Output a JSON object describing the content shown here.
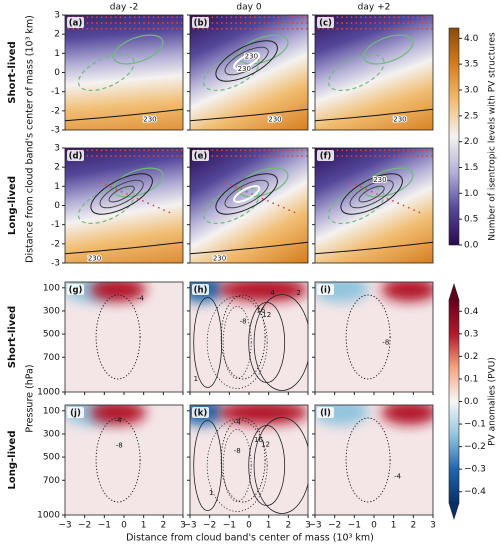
{
  "chart_data": [
    {
      "type": "contour",
      "column_titles": [
        "day -2",
        "day 0",
        "day +2"
      ],
      "row_labels": [
        "Short-lived",
        "Long-lived"
      ],
      "panel_labels": [
        [
          "(a)",
          "(b)",
          "(c)"
        ],
        [
          "(d)",
          "(e)",
          "(f)"
        ]
      ],
      "ylabel": "Distance from cloud band's center of mass (10³ km)",
      "xlim": [
        -3,
        3
      ],
      "ylim": [
        -3,
        3
      ],
      "yticks": [
        -3,
        -2,
        -1,
        0,
        1,
        2,
        3
      ],
      "contour_labels": [
        [
          [
            230
          ],
          [
            230,
            230,
            230
          ],
          [
            230
          ]
        ],
        [
          [
            230
          ],
          [
            230
          ],
          [
            230
          ]
        ]
      ],
      "colorbar": {
        "label": "Number of isentropic levels with PV structures",
        "lim": [
          0,
          4.2
        ],
        "ticks": [
          {
            "value": 0,
            "label": "0.0"
          },
          0.5,
          {
            "value": 1,
            "label": "1.0"
          },
          1.5,
          {
            "value": 2,
            "label": "2.0"
          },
          2.5,
          {
            "value": 3,
            "label": "3.0"
          },
          3.5,
          {
            "value": 4,
            "label": "4.0"
          }
        ],
        "colors": [
          "#2a0b4f",
          "#54479a",
          "#b3afd6",
          "#f4f2f1",
          "#f1bd72",
          "#d67d1f",
          "#8a490b"
        ]
      }
    },
    {
      "type": "contour",
      "row_labels": [
        "Short-lived",
        "Long-lived"
      ],
      "panel_labels": [
        [
          "(g)",
          "(h)",
          "(i)"
        ],
        [
          "(j)",
          "(k)",
          "(l)"
        ]
      ],
      "xlabel": "Distance from cloud band's center of mass (10³ km)",
      "ylabel": "Pressure (hPa)",
      "xlim": [
        -3,
        3
      ],
      "xticks": [
        {
          "value": -3,
          "label": "−3"
        },
        {
          "value": -2,
          "label": "−2"
        },
        {
          "value": -1,
          "label": "−1"
        },
        0,
        1,
        2,
        3
      ],
      "ylim": [
        1000,
        50
      ],
      "yticks": [
        100,
        300,
        500,
        700,
        1000
      ],
      "contour_labels": [
        [
          [
            -4
          ],
          [
            -8,
            4,
            2,
            1,
            16,
            12
          ],
          [
            -8
          ]
        ],
        [
          [
            -8,
            -4
          ],
          [
            -8,
            -4,
            16,
            12,
            1
          ],
          [
            -4
          ]
        ]
      ],
      "colorbar": {
        "label": "PV anomalies (PVU)",
        "lim": [
          -0.45,
          0.45
        ],
        "ticks": [
          {
            "value": -0.4,
            "label": "−0.4"
          },
          {
            "value": -0.3,
            "label": "−0.3"
          },
          {
            "value": -0.2,
            "label": "−0.2"
          },
          {
            "value": -0.1,
            "label": "−0.1"
          },
          {
            "value": 0,
            "label": "0.0"
          },
          0.1,
          0.2,
          0.3,
          0.4
        ],
        "colors": [
          "#08306b",
          "#2166ac",
          "#92c5de",
          "#f7f7f7",
          "#f4a582",
          "#b2182b",
          "#67001f"
        ]
      }
    }
  ]
}
